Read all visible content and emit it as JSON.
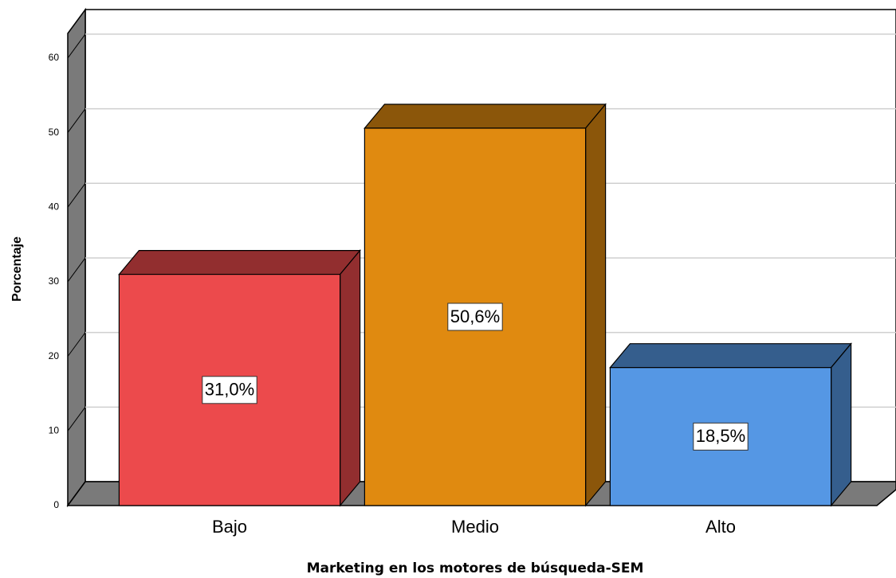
{
  "chart_data": {
    "type": "bar3d",
    "categories": [
      "Bajo",
      "Medio",
      "Alto"
    ],
    "values": [
      31.0,
      50.6,
      18.5
    ],
    "value_labels": [
      "31,0%",
      "50,6%",
      "18,5%"
    ],
    "colors": [
      "#ec4a4c",
      "#e08a10",
      "#5597e4"
    ],
    "ylim": [
      0,
      63.3
    ],
    "yticks": [
      0,
      10,
      20,
      30,
      40,
      50,
      60
    ],
    "grid": true,
    "y_label": "Porcentaje",
    "x_label": "Marketing en los motores de búsqueda-SEM"
  }
}
